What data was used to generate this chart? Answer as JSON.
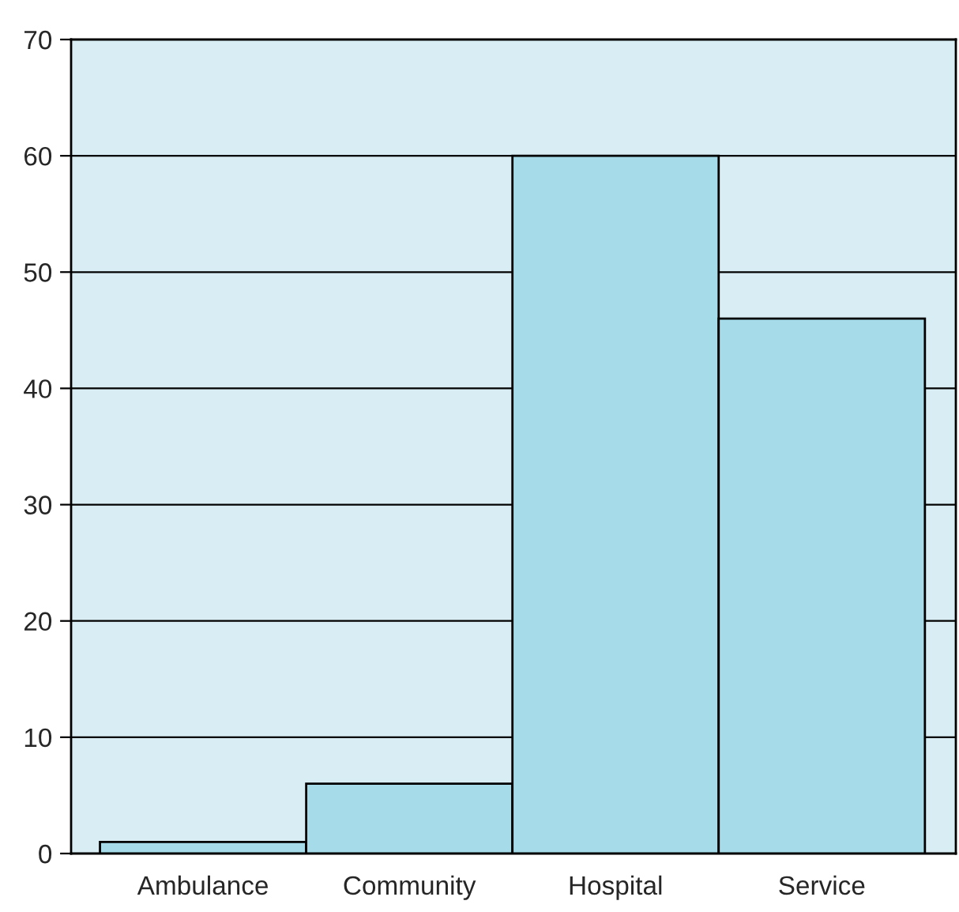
{
  "chart_data": {
    "type": "bar",
    "categories": [
      "Ambulance",
      "Community",
      "Hospital",
      "Service"
    ],
    "values": [
      1,
      6,
      60,
      46
    ],
    "color": "#a6dbe9",
    "ylim": [
      0,
      70
    ],
    "yticks": [
      0,
      10,
      20,
      30,
      40,
      50,
      60,
      70
    ],
    "grid": "y"
  }
}
